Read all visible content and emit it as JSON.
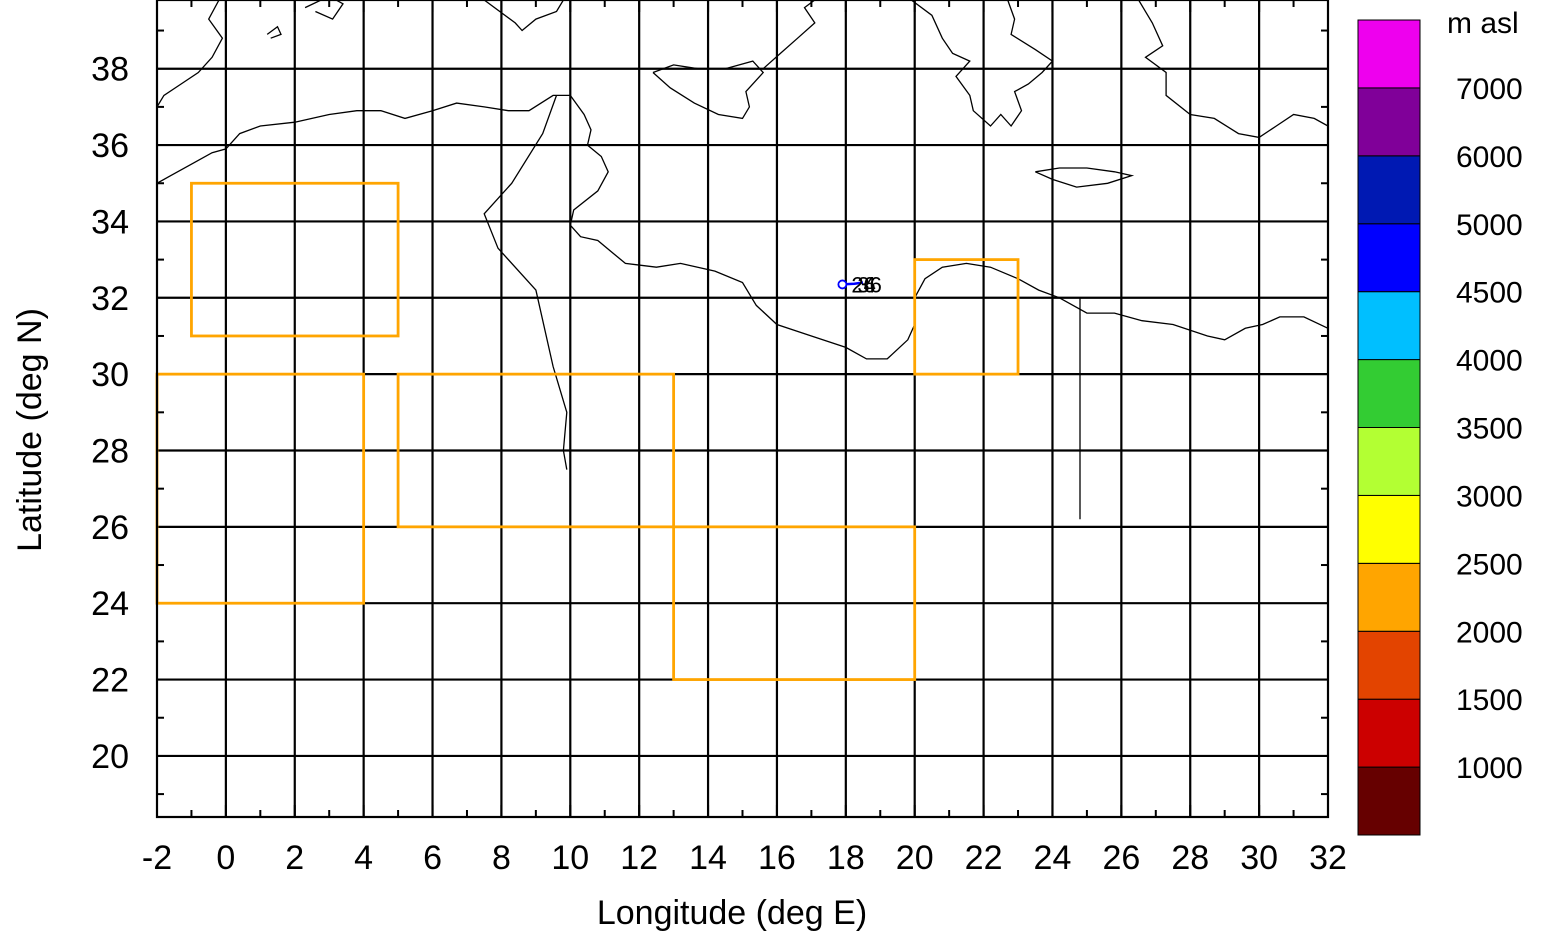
{
  "chart_data": {
    "type": "map",
    "xlabel": "Longitude (deg E)",
    "ylabel": "Latitude (deg N)",
    "xlim": [
      -2,
      32
    ],
    "ylim": [
      18.4,
      39.8
    ],
    "grid": true,
    "x_ticks": [
      -2,
      0,
      2,
      4,
      6,
      8,
      10,
      12,
      14,
      16,
      18,
      20,
      22,
      24,
      26,
      28,
      30,
      32
    ],
    "x_tick_labels": [
      "-2",
      "0",
      "2",
      "4",
      "6",
      "8",
      "10",
      "12",
      "14",
      "16",
      "18",
      "20",
      "22",
      "24",
      "26",
      "28",
      "30",
      "32"
    ],
    "y_ticks": [
      20,
      22,
      24,
      26,
      28,
      30,
      32,
      34,
      36,
      38
    ],
    "y_tick_labels": [
      "20",
      "22",
      "24",
      "26",
      "28",
      "30",
      "32",
      "34",
      "36",
      "38"
    ],
    "region_color": "#ffa500",
    "regions": [
      {
        "lon": [
          -1,
          5
        ],
        "lat": [
          31,
          35
        ]
      },
      {
        "lon": [
          -2,
          4
        ],
        "lat": [
          24,
          30
        ]
      },
      {
        "lon": [
          5,
          13
        ],
        "lat": [
          26,
          30
        ]
      },
      {
        "lon": [
          13,
          20
        ],
        "lat": [
          22,
          26
        ]
      },
      {
        "lon": [
          20,
          23
        ],
        "lat": [
          30,
          33
        ]
      }
    ],
    "trajectory": {
      "color": "#0000ff",
      "points": [
        [
          17.9,
          32.35
        ],
        [
          18.25,
          32.37
        ],
        [
          18.5,
          32.4
        ]
      ],
      "labels": [
        "24",
        "36",
        "6"
      ]
    },
    "colorbar": {
      "title": "m asl",
      "tick_labels": [
        "1000",
        "1500",
        "2000",
        "2500",
        "3000",
        "3500",
        "4000",
        "4500",
        "5000",
        "6000",
        "7000"
      ],
      "colors": [
        "#660000",
        "#cc0000",
        "#e34400",
        "#ffa500",
        "#ffff00",
        "#b3ff33",
        "#33cc33",
        "#00bfff",
        "#0000ff",
        "#0019b3",
        "#800099",
        "#ee00ee"
      ]
    },
    "coastlines": [
      [
        [
          -2,
          35.0
        ],
        [
          -1.6,
          35.2
        ],
        [
          -1,
          35.5
        ],
        [
          -0.4,
          35.8
        ],
        [
          0,
          35.9
        ],
        [
          0.4,
          36.3
        ],
        [
          1,
          36.5
        ],
        [
          2,
          36.6
        ],
        [
          3,
          36.8
        ],
        [
          3.8,
          36.9
        ],
        [
          4.5,
          36.9
        ],
        [
          5.2,
          36.7
        ],
        [
          6,
          36.9
        ],
        [
          6.7,
          37.1
        ],
        [
          7.5,
          37.0
        ],
        [
          8.2,
          36.9
        ],
        [
          8.8,
          36.9
        ],
        [
          9.5,
          37.3
        ],
        [
          10.0,
          37.3
        ],
        [
          10.4,
          36.8
        ],
        [
          10.6,
          36.4
        ],
        [
          10.5,
          36.0
        ],
        [
          10.9,
          35.7
        ],
        [
          11.1,
          35.3
        ],
        [
          10.8,
          34.8
        ],
        [
          10.1,
          34.3
        ],
        [
          10.0,
          33.9
        ],
        [
          10.3,
          33.6
        ],
        [
          10.8,
          33.5
        ],
        [
          11.2,
          33.2
        ],
        [
          11.6,
          32.9
        ],
        [
          12.5,
          32.8
        ],
        [
          13.2,
          32.9
        ],
        [
          14.2,
          32.7
        ],
        [
          15.0,
          32.4
        ],
        [
          15.4,
          31.8
        ],
        [
          16.0,
          31.3
        ],
        [
          17.0,
          31.0
        ],
        [
          18.0,
          30.7
        ],
        [
          18.6,
          30.4
        ],
        [
          19.2,
          30.4
        ],
        [
          19.8,
          30.9
        ],
        [
          20.0,
          31.3
        ],
        [
          20.0,
          32.0
        ],
        [
          20.3,
          32.5
        ],
        [
          20.8,
          32.8
        ],
        [
          21.5,
          32.9
        ],
        [
          22.2,
          32.8
        ],
        [
          23.0,
          32.5
        ],
        [
          23.6,
          32.2
        ],
        [
          24.2,
          32.0
        ],
        [
          25.0,
          31.6
        ],
        [
          25.8,
          31.6
        ],
        [
          26.6,
          31.4
        ],
        [
          27.5,
          31.3
        ],
        [
          28.5,
          31.0
        ],
        [
          29.0,
          30.9
        ],
        [
          29.6,
          31.2
        ],
        [
          30.1,
          31.3
        ],
        [
          30.6,
          31.5
        ],
        [
          31.3,
          31.5
        ],
        [
          32,
          31.2
        ]
      ],
      [
        [
          7.5,
          39.8
        ],
        [
          8.4,
          39.2
        ],
        [
          8.6,
          39.0
        ],
        [
          9.0,
          39.3
        ],
        [
          9.6,
          39.5
        ],
        [
          9.8,
          39.8
        ]
      ],
      [
        [
          12.4,
          37.9
        ],
        [
          13.0,
          38.1
        ],
        [
          13.7,
          38.0
        ],
        [
          14.5,
          38.0
        ],
        [
          15.3,
          38.2
        ],
        [
          15.6,
          37.9
        ],
        [
          15.1,
          37.4
        ],
        [
          15.2,
          37.0
        ],
        [
          15.0,
          36.7
        ],
        [
          14.3,
          36.8
        ],
        [
          13.6,
          37.1
        ],
        [
          12.9,
          37.5
        ],
        [
          12.4,
          37.9
        ]
      ],
      [
        [
          15.6,
          38.0
        ],
        [
          16.1,
          38.4
        ],
        [
          16.6,
          38.8
        ],
        [
          17.1,
          39.2
        ],
        [
          16.8,
          39.6
        ],
        [
          17.1,
          39.8
        ]
      ],
      [
        [
          18.5,
          39.8
        ],
        [
          18.4,
          40.0
        ]
      ],
      [
        [
          19.9,
          39.8
        ],
        [
          20.5,
          39.4
        ],
        [
          20.8,
          38.8
        ],
        [
          21.1,
          38.4
        ],
        [
          21.6,
          38.2
        ],
        [
          21.2,
          37.8
        ],
        [
          21.6,
          37.3
        ],
        [
          21.7,
          36.9
        ],
        [
          22.2,
          36.5
        ],
        [
          22.5,
          36.8
        ],
        [
          22.8,
          36.5
        ],
        [
          23.1,
          36.9
        ],
        [
          22.9,
          37.4
        ],
        [
          23.3,
          37.6
        ],
        [
          23.7,
          37.9
        ],
        [
          24.0,
          38.2
        ],
        [
          23.5,
          38.5
        ],
        [
          22.8,
          38.9
        ],
        [
          22.9,
          39.3
        ],
        [
          22.7,
          39.8
        ]
      ],
      [
        [
          23.5,
          35.3
        ],
        [
          24.2,
          35.4
        ],
        [
          25.0,
          35.4
        ],
        [
          25.8,
          35.3
        ],
        [
          26.3,
          35.2
        ],
        [
          25.6,
          35.0
        ],
        [
          24.7,
          34.9
        ],
        [
          24.0,
          35.1
        ],
        [
          23.5,
          35.3
        ]
      ],
      [
        [
          26.5,
          39.8
        ],
        [
          26.9,
          39.2
        ],
        [
          27.2,
          38.6
        ],
        [
          26.7,
          38.3
        ],
        [
          27.3,
          37.9
        ],
        [
          27.3,
          37.3
        ],
        [
          28.0,
          36.8
        ],
        [
          28.7,
          36.7
        ],
        [
          29.4,
          36.3
        ],
        [
          30.0,
          36.2
        ],
        [
          30.5,
          36.5
        ],
        [
          31.0,
          36.8
        ],
        [
          31.6,
          36.7
        ],
        [
          32,
          36.5
        ]
      ],
      [
        [
          24.8,
          32.0
        ],
        [
          24.8,
          29.0
        ],
        [
          24.8,
          26.2
        ]
      ],
      [
        [
          9.6,
          37.3
        ],
        [
          9.2,
          36.3
        ],
        [
          8.3,
          35.0
        ],
        [
          7.5,
          34.2
        ],
        [
          7.9,
          33.3
        ],
        [
          9.0,
          32.2
        ],
        [
          9.5,
          30.2
        ],
        [
          9.9,
          29.0
        ],
        [
          9.8,
          28.0
        ],
        [
          9.9,
          27.5
        ]
      ],
      [
        [
          -0.2,
          39.8
        ],
        [
          -0.5,
          39.3
        ],
        [
          -0.1,
          38.8
        ],
        [
          -0.4,
          38.3
        ],
        [
          -0.8,
          37.9
        ],
        [
          -1.3,
          37.6
        ],
        [
          -1.8,
          37.3
        ],
        [
          -2,
          37.0
        ]
      ],
      [
        [
          2.3,
          39.6
        ],
        [
          3.0,
          39.9
        ],
        [
          3.4,
          39.7
        ],
        [
          3.1,
          39.3
        ],
        [
          2.6,
          39.5
        ]
      ],
      [
        [
          1.2,
          38.9
        ],
        [
          1.5,
          39.1
        ],
        [
          1.6,
          38.9
        ],
        [
          1.3,
          38.8
        ]
      ]
    ]
  }
}
